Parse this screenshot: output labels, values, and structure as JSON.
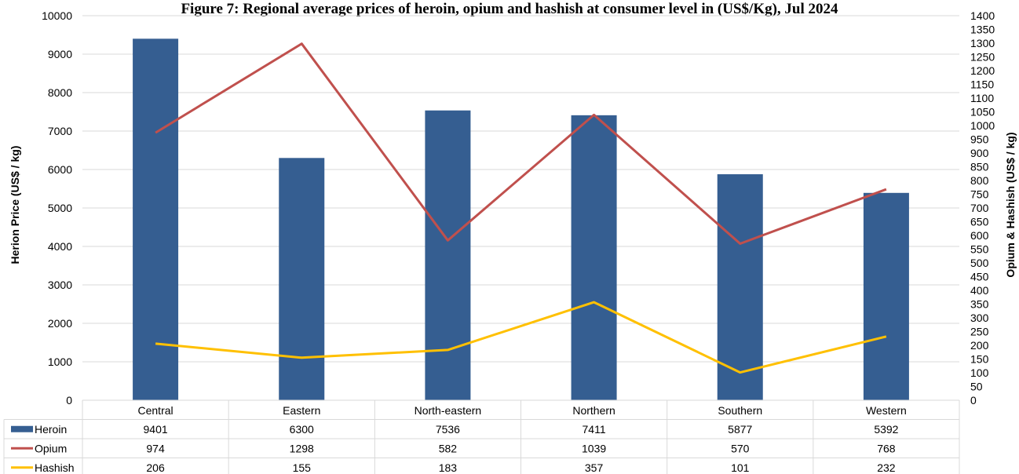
{
  "chart_data": {
    "type": "bar",
    "title": "Figure 7: Regional average prices of heroin, opium and hashish at consumer level in (US$/Kg), Jul 2024",
    "categories": [
      "Central",
      "Eastern",
      "North-eastern",
      "Northern",
      "Southern",
      "Western"
    ],
    "ylabel": "Herion Price (US$ / kg)",
    "y2label": "Opium & Hashish (US$ / kg)",
    "ylim": [
      0,
      10000
    ],
    "y2lim": [
      0,
      1400
    ],
    "y_ticks": [
      "0",
      "1000",
      "2000",
      "3000",
      "4000",
      "5000",
      "6000",
      "7000",
      "8000",
      "9000",
      "10000"
    ],
    "y2_ticks": [
      "0",
      "50",
      "100",
      "150",
      "200",
      "250",
      "300",
      "350",
      "400",
      "450",
      "500",
      "550",
      "600",
      "650",
      "700",
      "750",
      "800",
      "850",
      "900",
      "950",
      "1000",
      "1050",
      "1100",
      "1150",
      "1200",
      "1250",
      "1300",
      "1350",
      "1400"
    ],
    "grid": true,
    "legend": "data-table",
    "series": [
      {
        "name": "Heroin",
        "kind": "bar",
        "axis": "left",
        "color": "#355e91",
        "values": [
          9401,
          6300,
          7536,
          7411,
          5877,
          5392
        ]
      },
      {
        "name": "Opium",
        "kind": "line",
        "axis": "right",
        "color": "#c0504d",
        "values": [
          974,
          1298,
          582,
          1039,
          570,
          768
        ]
      },
      {
        "name": "Hashish",
        "kind": "line",
        "axis": "right",
        "color": "#ffc000",
        "values": [
          206,
          155,
          183,
          357,
          101,
          232
        ]
      }
    ]
  }
}
